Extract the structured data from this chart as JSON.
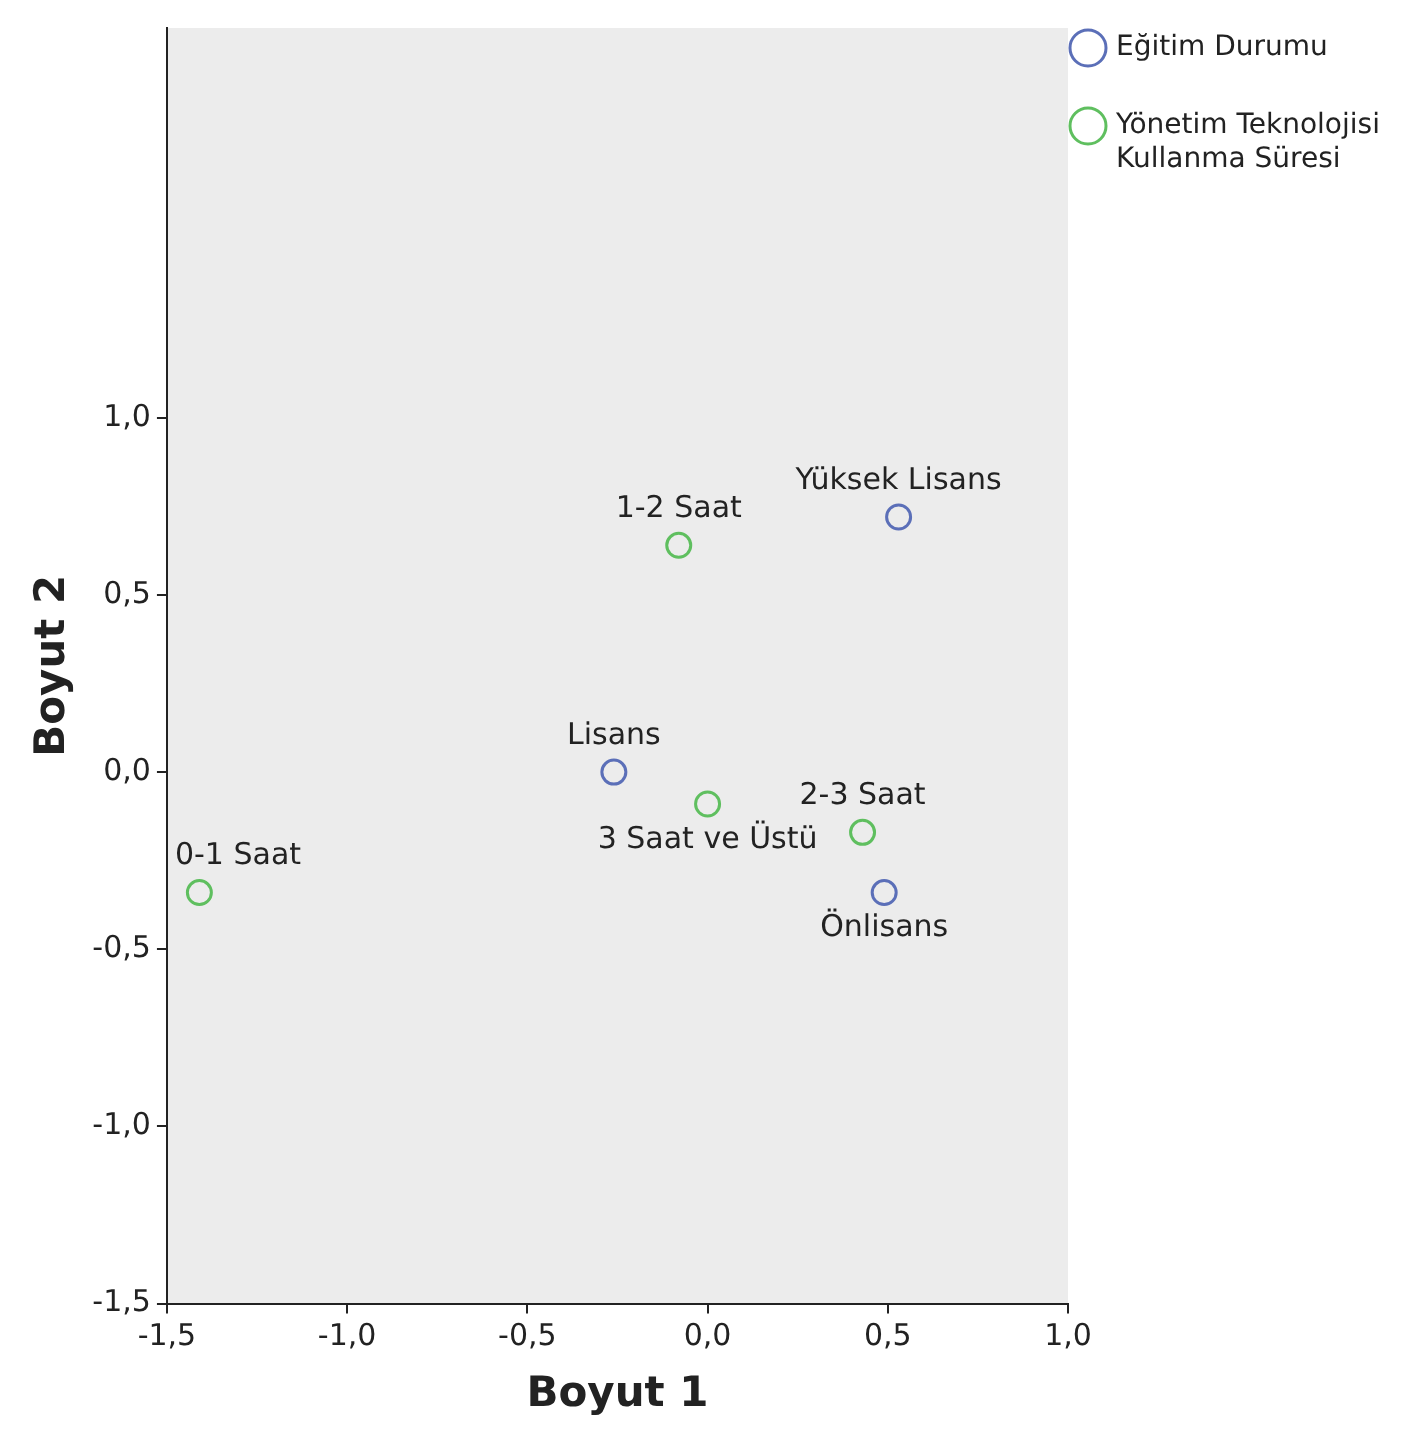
{
  "chart_data": {
    "type": "scatter",
    "xlabel": "Boyut 1",
    "ylabel": "Boyut 2",
    "xlim": [
      -1.5,
      1.0
    ],
    "ylim": [
      -1.5,
      2.1
    ],
    "xticks": [
      {
        "value": -1.5,
        "label": "-1,5"
      },
      {
        "value": -1.0,
        "label": "-1,0"
      },
      {
        "value": -0.5,
        "label": "-0,5"
      },
      {
        "value": 0,
        "label": "0,0"
      },
      {
        "value": 0.5,
        "label": "0,5"
      },
      {
        "value": 1.0,
        "label": "1,0"
      }
    ],
    "yticks": [
      {
        "value": -1.5,
        "label": "-1,5"
      },
      {
        "value": -1.0,
        "label": "-1,0"
      },
      {
        "value": -0.5,
        "label": "-0,5"
      },
      {
        "value": 0,
        "label": "0,0"
      },
      {
        "value": 0.5,
        "label": "0,5"
      },
      {
        "value": 1.0,
        "label": "1,0"
      }
    ],
    "series": [
      {
        "name": "Eğitim Durumu",
        "color": "#5b6fb8",
        "x": [
          0.53,
          -0.26,
          0.49
        ],
        "values": [
          0.72,
          0.0,
          -0.34
        ]
      },
      {
        "name": "Yönetim Teknolojisi Kullanma Süresi",
        "color": "#5fbf5f",
        "x": [
          -0.08,
          0.0,
          0.43,
          -1.41
        ],
        "values": [
          0.64,
          -0.09,
          -0.17,
          -0.34
        ]
      }
    ],
    "annotations": [
      {
        "text": "Yüksek Lisans",
        "x": 0.53,
        "y": 0.72
      },
      {
        "text": "Lisans",
        "x": -0.26,
        "y": 0.0
      },
      {
        "text": "Önlisans",
        "x": 0.49,
        "y": -0.34
      },
      {
        "text": "1-2 Saat",
        "x": -0.08,
        "y": 0.64
      },
      {
        "text": "3 Saat ve Üstü",
        "x": 0.0,
        "y": -0.09
      },
      {
        "text": "2-3 Saat",
        "x": 0.43,
        "y": -0.17
      },
      {
        "text": "0-1 Saat",
        "x": -1.41,
        "y": -0.34
      }
    ],
    "marker": "circle",
    "legend": "top right",
    "grid": false
  }
}
